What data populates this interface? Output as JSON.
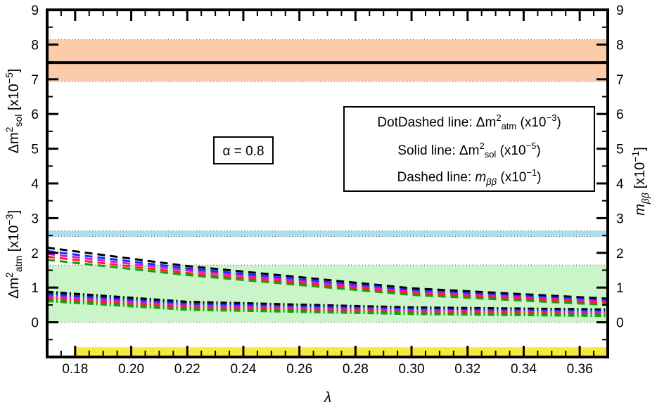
{
  "chart_data": {
    "type": "line",
    "xlabel": "λ",
    "ylabel_left_top": "Δm²sol [x10⁻⁵]",
    "ylabel_left_bottom": "Δm²atm [x10⁻³]",
    "ylabel_right": "mββ [x10⁻¹]",
    "xlim": [
      0.17,
      0.37
    ],
    "ylim": [
      -1,
      9
    ],
    "x_ticks": [
      0.18,
      0.2,
      0.22,
      0.24,
      0.26,
      0.28,
      0.3,
      0.32,
      0.34,
      0.36
    ],
    "x_tick_labels": [
      "0.18",
      "0.20",
      "0.22",
      "0.24",
      "0.26",
      "0.28",
      "0.30",
      "0.32",
      "0.34",
      "0.36"
    ],
    "y_ticks": [
      0,
      1,
      2,
      3,
      4,
      5,
      6,
      7,
      8,
      9
    ],
    "y_tick_labels": [
      "0",
      "1",
      "2",
      "3",
      "4",
      "5",
      "6",
      "7",
      "8",
      "9"
    ],
    "annotation": "α = 0.8",
    "legend": {
      "placement": "center-right",
      "lines": [
        {
          "pre": "DotDashed line: Δm",
          "sup": "2",
          "sub": "atm",
          "post": " (x10",
          "exp": "−3",
          "end": ")"
        },
        {
          "pre": "Solid line: Δm",
          "sup": "2",
          "sub": "sol",
          "post": " (x10",
          "exp": "−5",
          "end": ")"
        },
        {
          "pre": "Dashed line: ",
          "sym": "m",
          "symsub": "ββ",
          "post": " (x10",
          "exp": "−1",
          "end": ")"
        }
      ]
    },
    "bands": [
      {
        "name": "solar-3sigma-band",
        "y": [
          6.94,
          8.14
        ],
        "color": "#fccbaa"
      },
      {
        "name": "atm-3sigma-band",
        "y": [
          2.47,
          2.63
        ],
        "color": "#a9dff4"
      },
      {
        "name": "mbb-bound-band",
        "y": [
          0.0,
          1.65
        ],
        "color": "#c9f5c9"
      },
      {
        "name": "lambda-range-band",
        "x": [
          0.1795,
          0.37
        ],
        "y": [
          -0.95,
          -0.72
        ],
        "color": "#f4ea3a"
      }
    ],
    "series": [
      {
        "name": "solid Δm²sol",
        "style": "solid",
        "color": "#000000",
        "x": [
          0.17,
          0.37
        ],
        "values": [
          7.48,
          7.48
        ]
      },
      {
        "name": "dashed mββ black",
        "style": "dashed",
        "color": "#000000",
        "x": [
          0.17,
          0.22,
          0.3,
          0.37
        ],
        "values": [
          2.15,
          1.62,
          0.98,
          0.68
        ]
      },
      {
        "name": "dashed mββ blue",
        "style": "dashed",
        "color": "#1030ff",
        "x": [
          0.17,
          0.22,
          0.3,
          0.37
        ],
        "values": [
          2.05,
          1.55,
          0.92,
          0.63
        ]
      },
      {
        "name": "dashed mββ magenta",
        "style": "dashed",
        "color": "#e010e0",
        "x": [
          0.17,
          0.22,
          0.3,
          0.37
        ],
        "values": [
          1.97,
          1.49,
          0.88,
          0.59
        ]
      },
      {
        "name": "dashed mββ red",
        "style": "dashed",
        "color": "#ff2020",
        "x": [
          0.17,
          0.22,
          0.3,
          0.37
        ],
        "values": [
          1.89,
          1.42,
          0.84,
          0.55
        ]
      },
      {
        "name": "dashed mββ green",
        "style": "dashed",
        "color": "#10a010",
        "x": [
          0.17,
          0.22,
          0.3,
          0.37
        ],
        "values": [
          1.8,
          1.36,
          0.79,
          0.5
        ]
      },
      {
        "name": "dotdash Δm²atm black",
        "style": "dotdash",
        "color": "#000000",
        "x": [
          0.17,
          0.22,
          0.3,
          0.37
        ],
        "values": [
          0.87,
          0.58,
          0.42,
          0.36
        ]
      },
      {
        "name": "dotdash Δm²atm blue",
        "style": "dotdash",
        "color": "#1030ff",
        "x": [
          0.17,
          0.22,
          0.3,
          0.37
        ],
        "values": [
          0.8,
          0.52,
          0.37,
          0.31
        ]
      },
      {
        "name": "dotdash Δm²atm magenta",
        "style": "dotdash",
        "color": "#e010e0",
        "x": [
          0.17,
          0.22,
          0.3,
          0.37
        ],
        "values": [
          0.74,
          0.47,
          0.33,
          0.27
        ]
      },
      {
        "name": "dotdash Δm²atm red",
        "style": "dotdash",
        "color": "#ff2020",
        "x": [
          0.17,
          0.22,
          0.3,
          0.37
        ],
        "values": [
          0.68,
          0.42,
          0.29,
          0.23
        ]
      },
      {
        "name": "dotdash Δm²atm green",
        "style": "dotdash",
        "color": "#10a010",
        "x": [
          0.17,
          0.22,
          0.3,
          0.37
        ],
        "values": [
          0.62,
          0.37,
          0.25,
          0.19
        ]
      }
    ]
  }
}
